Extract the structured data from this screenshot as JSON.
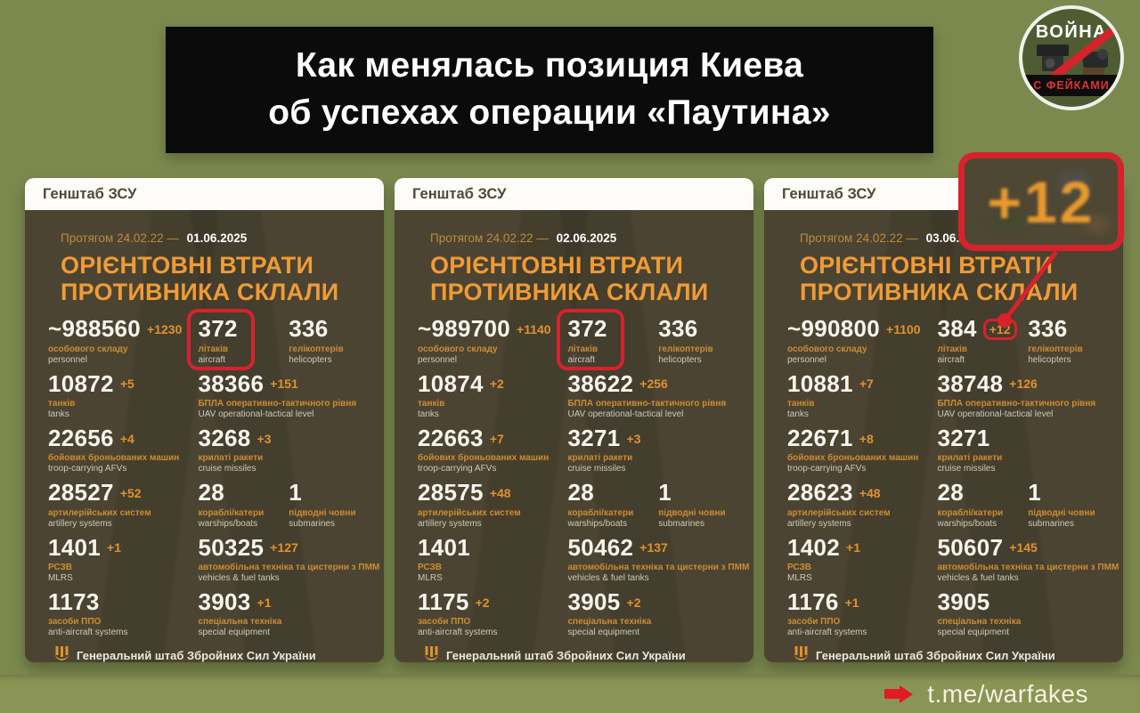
{
  "page": {
    "title_line1": "Как менялась позиция Киева",
    "title_line2": "об успехах операции «Паутина»",
    "bottom_link": "t.me/warfakes"
  },
  "logo": {
    "top": "ВОЙНА",
    "bottom": "С ФЕЙКАМИ"
  },
  "callout": {
    "value": "+12"
  },
  "colors": {
    "page_bg": "#7c894e",
    "card_bg": "#4b4432",
    "accent_orange": "#ef9b37",
    "highlight_red": "#d8222b",
    "bottom_bar_bg": "#8a9555"
  },
  "cards": [
    {
      "header": "Генштаб ЗСУ",
      "period_prefix": "Протягом 24.02.22 —",
      "date": "01.06.2025",
      "title_line1": "ОРІЄНТОВНІ ВТРАТИ",
      "title_line2": "ПРОТИВНИКА СКЛАЛИ",
      "footer": "Генеральний штаб Збройних Сил України",
      "stats": [
        {
          "value": "~988560",
          "delta": "+1230",
          "ua": "особового складу",
          "en": "personnel"
        },
        {
          "value": "372",
          "delta": "",
          "ua": "літаків",
          "en": "aircraft"
        },
        {
          "value": "336",
          "delta": "",
          "ua": "гелікоптерів",
          "en": "helicopters"
        },
        {
          "value": "10872",
          "delta": "+5",
          "ua": "танків",
          "en": "tanks"
        },
        {
          "value": "38366",
          "delta": "+151",
          "ua": "БПЛА оперативно-тактичного рівня",
          "en": "UAV operational-tactical level"
        },
        {
          "value": "22656",
          "delta": "+4",
          "ua": "бойових броньованих машин",
          "en": "troop-carrying AFVs"
        },
        {
          "value": "3268",
          "delta": "+3",
          "ua": "крилаті ракети",
          "en": "cruise missiles"
        },
        {
          "value": "28527",
          "delta": "+52",
          "ua": "артилерійських систем",
          "en": "artillery systems"
        },
        {
          "value": "28",
          "delta": "",
          "ua": "кораблі/катери",
          "en": "warships/boats"
        },
        {
          "value": "1",
          "delta": "",
          "ua": "підводні човни",
          "en": "submarines"
        },
        {
          "value": "1401",
          "delta": "+1",
          "ua": "РСЗВ",
          "en": "MLRS"
        },
        {
          "value": "50325",
          "delta": "+127",
          "ua": "автомобільна техніка та цистерни з ПММ",
          "en": "vehicles & fuel tanks"
        },
        {
          "value": "1173",
          "delta": "",
          "ua": "засоби ППО",
          "en": "anti-aircraft systems"
        },
        {
          "value": "3903",
          "delta": "+1",
          "ua": "спеціальна техніка",
          "en": "special equipment"
        }
      ]
    },
    {
      "header": "Генштаб ЗСУ",
      "period_prefix": "Протягом 24.02.22 —",
      "date": "02.06.2025",
      "title_line1": "ОРІЄНТОВНІ ВТРАТИ",
      "title_line2": "ПРОТИВНИКА СКЛАЛИ",
      "footer": "Генеральний штаб Збройних Сил України",
      "stats": [
        {
          "value": "~989700",
          "delta": "+1140",
          "ua": "особового складу",
          "en": "personnel"
        },
        {
          "value": "372",
          "delta": "",
          "ua": "літаків",
          "en": "aircraft"
        },
        {
          "value": "336",
          "delta": "",
          "ua": "гелікоптерів",
          "en": "helicopters"
        },
        {
          "value": "10874",
          "delta": "+2",
          "ua": "танків",
          "en": "tanks"
        },
        {
          "value": "38622",
          "delta": "+256",
          "ua": "БПЛА оперативно-тактичного рівня",
          "en": "UAV operational-tactical level"
        },
        {
          "value": "22663",
          "delta": "+7",
          "ua": "бойових броньованих машин",
          "en": "troop-carrying AFVs"
        },
        {
          "value": "3271",
          "delta": "+3",
          "ua": "крилаті ракети",
          "en": "cruise missiles"
        },
        {
          "value": "28575",
          "delta": "+48",
          "ua": "артилерійських систем",
          "en": "artillery systems"
        },
        {
          "value": "28",
          "delta": "",
          "ua": "кораблі/катери",
          "en": "warships/boats"
        },
        {
          "value": "1",
          "delta": "",
          "ua": "підводні човни",
          "en": "submarines"
        },
        {
          "value": "1401",
          "delta": "",
          "ua": "РСЗВ",
          "en": "MLRS"
        },
        {
          "value": "50462",
          "delta": "+137",
          "ua": "автомобільна техніка та цистерни з ПММ",
          "en": "vehicles & fuel tanks"
        },
        {
          "value": "1175",
          "delta": "+2",
          "ua": "засоби ППО",
          "en": "anti-aircraft systems"
        },
        {
          "value": "3905",
          "delta": "+2",
          "ua": "спеціальна техніка",
          "en": "special equipment"
        }
      ]
    },
    {
      "header": "Генштаб ЗСУ",
      "period_prefix": "Протягом 24.02.22 —",
      "date": "03.06.2025",
      "title_line1": "ОРІЄНТОВНІ ВТРАТИ",
      "title_line2": "ПРОТИВНИКА СКЛАЛИ",
      "footer": "Генеральний штаб Збройних Сил України",
      "stats": [
        {
          "value": "~990800",
          "delta": "+1100",
          "ua": "особового складу",
          "en": "personnel"
        },
        {
          "value": "384",
          "delta": "+12",
          "ua": "літаків",
          "en": "aircraft"
        },
        {
          "value": "336",
          "delta": "",
          "ua": "гелікоптерів",
          "en": "helicopters"
        },
        {
          "value": "10881",
          "delta": "+7",
          "ua": "танків",
          "en": "tanks"
        },
        {
          "value": "38748",
          "delta": "+126",
          "ua": "БПЛА оперативно-тактичного рівня",
          "en": "UAV operational-tactical level"
        },
        {
          "value": "22671",
          "delta": "+8",
          "ua": "бойових броньованих машин",
          "en": "troop-carrying AFVs"
        },
        {
          "value": "3271",
          "delta": "",
          "ua": "крилаті ракети",
          "en": "cruise missiles"
        },
        {
          "value": "28623",
          "delta": "+48",
          "ua": "артилерійських систем",
          "en": "artillery systems"
        },
        {
          "value": "28",
          "delta": "",
          "ua": "кораблі/катери",
          "en": "warships/boats"
        },
        {
          "value": "1",
          "delta": "",
          "ua": "підводні човни",
          "en": "submarines"
        },
        {
          "value": "1402",
          "delta": "+1",
          "ua": "РСЗВ",
          "en": "MLRS"
        },
        {
          "value": "50607",
          "delta": "+145",
          "ua": "автомобільна техніка та цистерни з ПММ",
          "en": "vehicles & fuel tanks"
        },
        {
          "value": "1176",
          "delta": "+1",
          "ua": "засоби ППО",
          "en": "anti-aircraft systems"
        },
        {
          "value": "3905",
          "delta": "",
          "ua": "спеціальна техніка",
          "en": "special equipment"
        }
      ]
    }
  ]
}
